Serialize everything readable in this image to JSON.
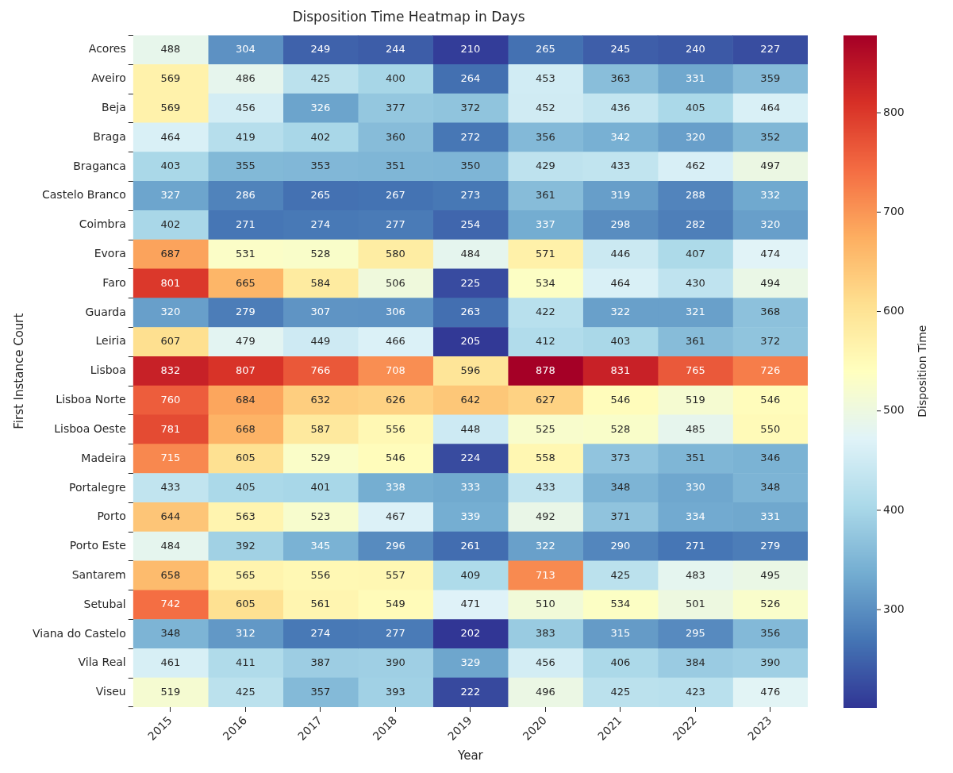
{
  "chart_data": {
    "type": "heatmap",
    "title": "Disposition Time Heatmap in Days",
    "xlabel": "Year",
    "ylabel": "First Instance Court",
    "clabel": "Disposition Time",
    "categories": [
      "2015",
      "2016",
      "2017",
      "2018",
      "2019",
      "2020",
      "2021",
      "2022",
      "2023"
    ],
    "y_categories": [
      "Acores",
      "Aveiro",
      "Beja",
      "Braga",
      "Braganca",
      "Castelo Branco",
      "Coimbra",
      "Evora",
      "Faro",
      "Guarda",
      "Leiria",
      "Lisboa",
      "Lisboa Norte",
      "Lisboa Oeste",
      "Madeira",
      "Portalegre",
      "Porto",
      "Porto Este",
      "Santarem",
      "Setubal",
      "Viana do Castelo",
      "Vila Real",
      "Viseu"
    ],
    "cells": [
      [
        488,
        304,
        249,
        244,
        210,
        265,
        245,
        240,
        227
      ],
      [
        569,
        486,
        425,
        400,
        264,
        453,
        363,
        331,
        359
      ],
      [
        569,
        456,
        326,
        377,
        372,
        452,
        436,
        405,
        464
      ],
      [
        464,
        419,
        402,
        360,
        272,
        356,
        342,
        320,
        352
      ],
      [
        403,
        355,
        353,
        351,
        350,
        429,
        433,
        462,
        497
      ],
      [
        327,
        286,
        265,
        267,
        273,
        361,
        319,
        288,
        332
      ],
      [
        402,
        271,
        274,
        277,
        254,
        337,
        298,
        282,
        320
      ],
      [
        687,
        531,
        528,
        580,
        484,
        571,
        446,
        407,
        474
      ],
      [
        801,
        665,
        584,
        506,
        225,
        534,
        464,
        430,
        494
      ],
      [
        320,
        279,
        307,
        306,
        263,
        422,
        322,
        321,
        368
      ],
      [
        607,
        479,
        449,
        466,
        205,
        412,
        403,
        361,
        372
      ],
      [
        832,
        807,
        766,
        708,
        596,
        878,
        831,
        765,
        726
      ],
      [
        760,
        684,
        632,
        626,
        642,
        627,
        546,
        519,
        546
      ],
      [
        781,
        668,
        587,
        556,
        448,
        525,
        528,
        485,
        550
      ],
      [
        715,
        605,
        529,
        546,
        224,
        558,
        373,
        351,
        346
      ],
      [
        433,
        405,
        401,
        338,
        333,
        433,
        348,
        330,
        348
      ],
      [
        644,
        563,
        523,
        467,
        339,
        492,
        371,
        334,
        331
      ],
      [
        484,
        392,
        345,
        296,
        261,
        322,
        290,
        271,
        279
      ],
      [
        658,
        565,
        556,
        557,
        409,
        713,
        425,
        483,
        495
      ],
      [
        742,
        605,
        561,
        549,
        471,
        510,
        534,
        501,
        526
      ],
      [
        348,
        312,
        274,
        277,
        202,
        383,
        315,
        295,
        356
      ],
      [
        461,
        411,
        387,
        390,
        329,
        456,
        406,
        384,
        390
      ],
      [
        519,
        425,
        357,
        393,
        222,
        496,
        425,
        423,
        476
      ]
    ],
    "data_labels": true,
    "clim": [
      202,
      878
    ],
    "cticks": [
      300,
      400,
      500,
      600,
      700,
      800
    ]
  }
}
